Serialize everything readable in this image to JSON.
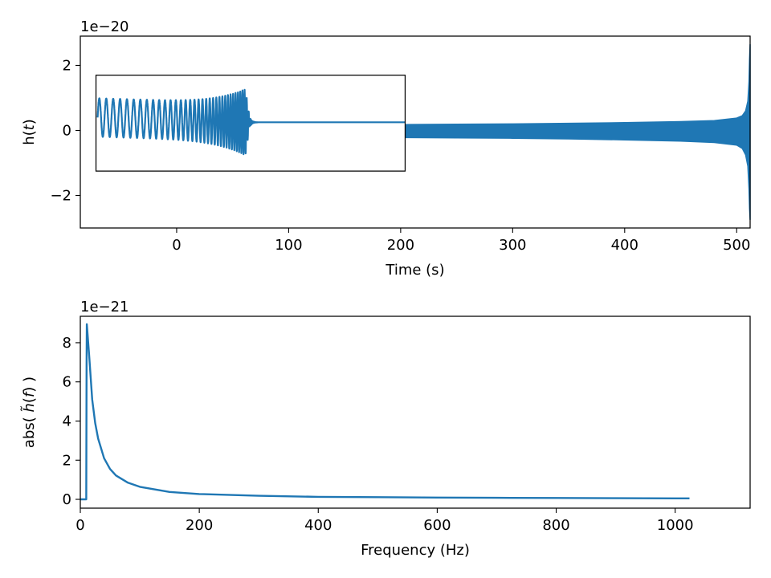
{
  "chart_data": [
    {
      "type": "line",
      "xlabel": "Time (s)",
      "ylabel_parts": [
        "h(",
        "t",
        ")"
      ],
      "offset_text": "1e−20",
      "xlim": [
        -86,
        512
      ],
      "ylim": [
        -3.0,
        2.9
      ],
      "xticks": [
        0,
        100,
        200,
        300,
        400,
        500
      ],
      "xtick_labels": [
        "0",
        "100",
        "200",
        "300",
        "400",
        "500"
      ],
      "yticks": [
        -2,
        0,
        2
      ],
      "ytick_labels": [
        "−2",
        "0",
        "2"
      ],
      "color": "#1f77b4",
      "grid": false,
      "inset": {
        "x_range": [
          -72,
          204
        ],
        "y_range": [
          -1.25,
          1.7
        ]
      },
      "series": [
        {
          "x": [
            204,
            250,
            300,
            350,
            400,
            450,
            480,
            500,
            505,
            508,
            510,
            511,
            511.5,
            512
          ],
          "y_upper": [
            0.18,
            0.19,
            0.2,
            0.22,
            0.24,
            0.27,
            0.3,
            0.38,
            0.45,
            0.6,
            0.9,
            1.5,
            2.2,
            2.65
          ],
          "y_lower": [
            -0.22,
            -0.23,
            -0.24,
            -0.26,
            -0.29,
            -0.33,
            -0.37,
            -0.45,
            -0.55,
            -0.75,
            -1.1,
            -1.8,
            -2.4,
            -2.75
          ]
        }
      ]
    },
    {
      "type": "line",
      "xlabel": "Frequency (Hz)",
      "ylabel_parts": [
        "abs( ",
        "h̃",
        "(",
        "f",
        ") )"
      ],
      "offset_text": "1e−21",
      "xlim": [
        0,
        1126
      ],
      "ylim": [
        -0.45,
        9.35
      ],
      "xticks": [
        0,
        200,
        400,
        600,
        800,
        1000
      ],
      "xtick_labels": [
        "0",
        "200",
        "400",
        "600",
        "800",
        "1000"
      ],
      "yticks": [
        0,
        2,
        4,
        6,
        8
      ],
      "ytick_labels": [
        "0",
        "2",
        "4",
        "6",
        "8"
      ],
      "color": "#1f77b4",
      "grid": false,
      "series": [
        {
          "x": [
            0,
            10,
            10.5,
            11,
            15,
            20,
            25,
            30,
            40,
            50,
            60,
            80,
            100,
            150,
            200,
            300,
            400,
            500,
            600,
            700,
            800,
            900,
            1000,
            1024
          ],
          "y": [
            0,
            0,
            6.8,
            8.95,
            7.3,
            5.1,
            3.9,
            3.1,
            2.1,
            1.55,
            1.22,
            0.85,
            0.64,
            0.38,
            0.27,
            0.18,
            0.13,
            0.11,
            0.09,
            0.08,
            0.07,
            0.06,
            0.05,
            0.05
          ]
        }
      ]
    }
  ]
}
